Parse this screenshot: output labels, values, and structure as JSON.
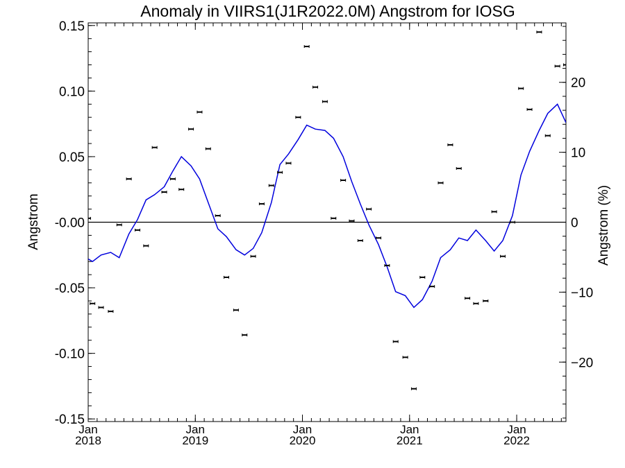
{
  "chart_data": {
    "type": "scatter",
    "title": "Anomaly in VIIRS1(J1R2022.0M) Angstrom for IOSG",
    "ylabel": "Angstrom",
    "y2label": "Angstrom (%)",
    "ylim": [
      -0.152,
      0.152
    ],
    "y2lim": [
      -28.5,
      28.5
    ],
    "xlim": [
      2018.0,
      2022.46
    ],
    "yticks": [
      0.15,
      0.1,
      0.05,
      0.0,
      -0.05,
      -0.1,
      -0.15
    ],
    "ytick_labels": [
      "0.15",
      "0.10",
      "0.05",
      "-0.00",
      "-0.05",
      "-0.10",
      "-0.15"
    ],
    "y2ticks": [
      20,
      10,
      0,
      -10,
      -20
    ],
    "y2tick_labels": [
      "20",
      "10",
      "0",
      "−10",
      "−20"
    ],
    "xticks": [
      2018.0,
      2019.0,
      2020.0,
      2021.0,
      2022.0
    ],
    "xtick_month": "Jan",
    "xtick_years": [
      "2018",
      "2019",
      "2020",
      "2021",
      "2022"
    ],
    "zero_line": true,
    "grid": false,
    "series": [
      {
        "kind": "monthly-points-with-error-bars",
        "color": "#000000",
        "x": [
          2018.0,
          2018.04,
          2018.12,
          2018.21,
          2018.29,
          2018.38,
          2018.46,
          2018.54,
          2018.62,
          2018.71,
          2018.79,
          2018.87,
          2018.96,
          2019.04,
          2019.12,
          2019.21,
          2019.29,
          2019.38,
          2019.46,
          2019.54,
          2019.62,
          2019.71,
          2019.79,
          2019.87,
          2019.96,
          2020.04,
          2020.12,
          2020.21,
          2020.29,
          2020.38,
          2020.46,
          2020.54,
          2020.62,
          2020.71,
          2020.79,
          2020.87,
          2020.96,
          2021.04,
          2021.12,
          2021.21,
          2021.29,
          2021.38,
          2021.46,
          2021.54,
          2021.62,
          2021.71,
          2021.79,
          2021.87,
          2021.96,
          2022.04,
          2022.12,
          2022.21,
          2022.29,
          2022.38,
          2022.46
        ],
        "y": [
          0.003,
          -0.062,
          -0.065,
          -0.068,
          -0.002,
          0.033,
          -0.006,
          -0.018,
          0.057,
          0.023,
          0.033,
          0.025,
          0.071,
          0.084,
          0.056,
          0.005,
          -0.042,
          -0.067,
          -0.086,
          -0.026,
          0.014,
          0.028,
          0.038,
          0.045,
          0.08,
          0.134,
          0.103,
          0.092,
          0.003,
          0.032,
          0.001,
          -0.014,
          0.01,
          -0.012,
          -0.033,
          -0.091,
          -0.103,
          -0.127,
          -0.042,
          -0.049,
          0.03,
          0.059,
          0.041,
          -0.058,
          -0.062,
          -0.06,
          0.008,
          -0.026,
          0.0,
          0.102,
          0.086,
          0.145,
          0.066,
          0.119,
          0.12
        ]
      },
      {
        "kind": "smoothed-line",
        "color": "#0000dd",
        "x": [
          2018.0,
          2018.04,
          2018.12,
          2018.21,
          2018.29,
          2018.38,
          2018.46,
          2018.54,
          2018.62,
          2018.71,
          2018.79,
          2018.87,
          2018.96,
          2019.04,
          2019.12,
          2019.21,
          2019.29,
          2019.38,
          2019.46,
          2019.54,
          2019.62,
          2019.71,
          2019.79,
          2019.87,
          2019.96,
          2020.04,
          2020.12,
          2020.21,
          2020.29,
          2020.38,
          2020.46,
          2020.54,
          2020.62,
          2020.71,
          2020.79,
          2020.87,
          2020.96,
          2021.04,
          2021.12,
          2021.21,
          2021.29,
          2021.38,
          2021.46,
          2021.54,
          2021.62,
          2021.71,
          2021.79,
          2021.87,
          2021.96,
          2022.04,
          2022.12,
          2022.21,
          2022.29,
          2022.38,
          2022.46
        ],
        "y": [
          -0.028,
          -0.03,
          -0.025,
          -0.023,
          -0.027,
          -0.009,
          0.002,
          0.017,
          0.021,
          0.027,
          0.039,
          0.05,
          0.043,
          0.033,
          0.015,
          -0.005,
          -0.011,
          -0.021,
          -0.025,
          -0.02,
          -0.008,
          0.015,
          0.044,
          0.052,
          0.063,
          0.074,
          0.071,
          0.07,
          0.064,
          0.05,
          0.031,
          0.014,
          -0.002,
          -0.017,
          -0.034,
          -0.053,
          -0.056,
          -0.065,
          -0.059,
          -0.045,
          -0.027,
          -0.021,
          -0.012,
          -0.014,
          -0.006,
          -0.014,
          -0.022,
          -0.014,
          0.005,
          0.036,
          0.054,
          0.07,
          0.083,
          0.09,
          0.076
        ]
      }
    ]
  }
}
